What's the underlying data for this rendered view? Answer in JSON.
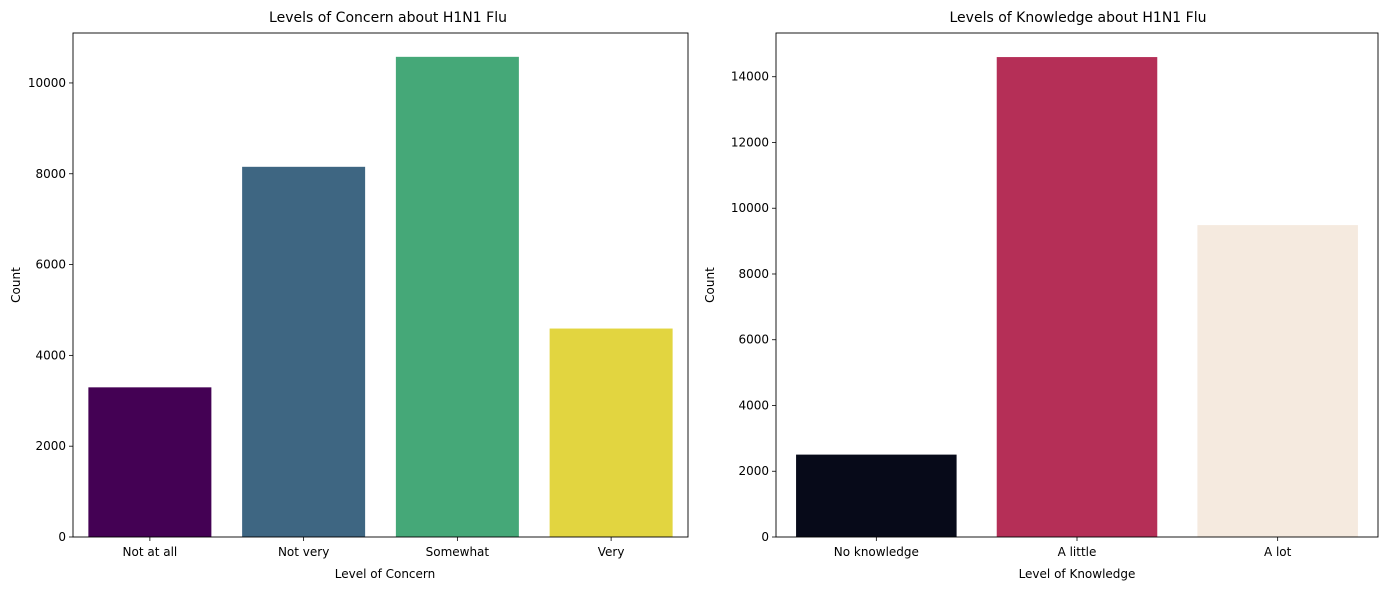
{
  "chart_data": [
    {
      "type": "bar",
      "title": "Levels of Concern about H1N1 Flu",
      "xlabel": "Level of Concern",
      "ylabel": "Count",
      "categories": [
        "Not at all",
        "Not very",
        "Somewhat",
        "Very"
      ],
      "values": [
        3296,
        8153,
        10575,
        4591
      ],
      "colors": [
        "#440154",
        "#3e6682",
        "#45a878",
        "#e2d540"
      ],
      "ylim": [
        0,
        11100
      ],
      "yticks": [
        0,
        2000,
        4000,
        6000,
        8000,
        10000
      ],
      "grid": false,
      "legend": "none"
    },
    {
      "type": "bar",
      "title": "Levels of Knowledge about H1N1 Flu",
      "xlabel": "Level of Knowledge",
      "ylabel": "Count",
      "categories": [
        "No knowledge",
        "A little",
        "A lot"
      ],
      "values": [
        2506,
        14598,
        9487
      ],
      "colors": [
        "#070a19",
        "#b52f57",
        "#f5eadf"
      ],
      "ylim": [
        0,
        15330
      ],
      "yticks": [
        0,
        2000,
        4000,
        6000,
        8000,
        10000,
        12000,
        14000
      ],
      "grid": false,
      "legend": "none"
    }
  ]
}
